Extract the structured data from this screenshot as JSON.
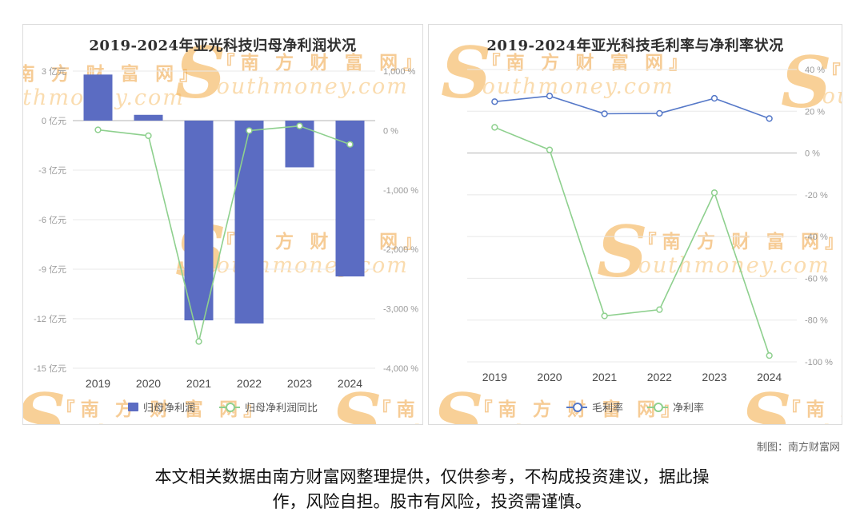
{
  "watermark": {
    "s": "S",
    "cn": "『南 方 财 富 网』",
    "en": "outhmoney.com"
  },
  "footer": {
    "credit": "制图：南方财富网",
    "disclaimer_lines": [
      "本文相关数据由南方财富网整理提供，仅供参考，不构成投资建议，据此操",
      "作，风险自担。股市有风险，投资需谨慎。"
    ]
  },
  "chart_data": [
    {
      "type": "bar+line",
      "title": "2019-2024年亚光科技归母净利润状况",
      "categories": [
        "2019",
        "2020",
        "2021",
        "2022",
        "2023",
        "2024"
      ],
      "series": [
        {
          "name": "归母净利润",
          "type": "bar",
          "axis": "left",
          "color": "#5b6cc2",
          "values": [
            2.79,
            0.35,
            -12.1,
            -12.29,
            -2.83,
            -9.44
          ]
        },
        {
          "name": "归母净利润同比",
          "type": "line",
          "axis": "right",
          "color": "#8ed08e",
          "values": [
            12,
            -87.5,
            -3550,
            -1.6,
            77,
            -233
          ]
        }
      ],
      "left_axis": {
        "min": -15,
        "max": 3,
        "unit": "亿元",
        "tick_values": [
          3,
          0,
          -3,
          -6,
          -9,
          -12,
          -15
        ],
        "tick_labels": [
          "3 亿元",
          "0 亿元",
          "-3 亿元",
          "-6 亿元",
          "-9 亿元",
          "-12 亿元",
          "-15 亿元"
        ]
      },
      "right_axis": {
        "min": -4000,
        "max": 1000,
        "unit": "%",
        "tick_values": [
          1000,
          0,
          -1000,
          -2000,
          -3000,
          -4000
        ],
        "tick_labels": [
          "1,000 %",
          "0 %",
          "-1,000 %",
          "-2,000 %",
          "-3,000 %",
          "-4,000 %"
        ]
      },
      "grid": "on",
      "legend_position": "bottom"
    },
    {
      "type": "line",
      "title": "2019-2024年亚光科技毛利率与净利率状况",
      "categories": [
        "2019",
        "2020",
        "2021",
        "2022",
        "2023",
        "2024"
      ],
      "series": [
        {
          "name": "毛利率",
          "type": "line",
          "axis": "right",
          "color": "#5578c8",
          "values": [
            24.6,
            27.3,
            18.8,
            19.0,
            26.2,
            16.5
          ]
        },
        {
          "name": "净利率",
          "type": "line",
          "axis": "right",
          "color": "#8ed08e",
          "values": [
            12.3,
            1.5,
            -78,
            -75,
            -19,
            -97
          ]
        }
      ],
      "right_axis": {
        "min": -100,
        "max": 40,
        "unit": "%",
        "tick_values": [
          40,
          20,
          0,
          -20,
          -40,
          -60,
          -80,
          -100
        ],
        "tick_labels": [
          "40 %",
          "20 %",
          "0 %",
          "-20 %",
          "-40 %",
          "-60 %",
          "-80 %",
          "-100 %"
        ]
      },
      "grid": "on",
      "legend_position": "bottom"
    }
  ]
}
